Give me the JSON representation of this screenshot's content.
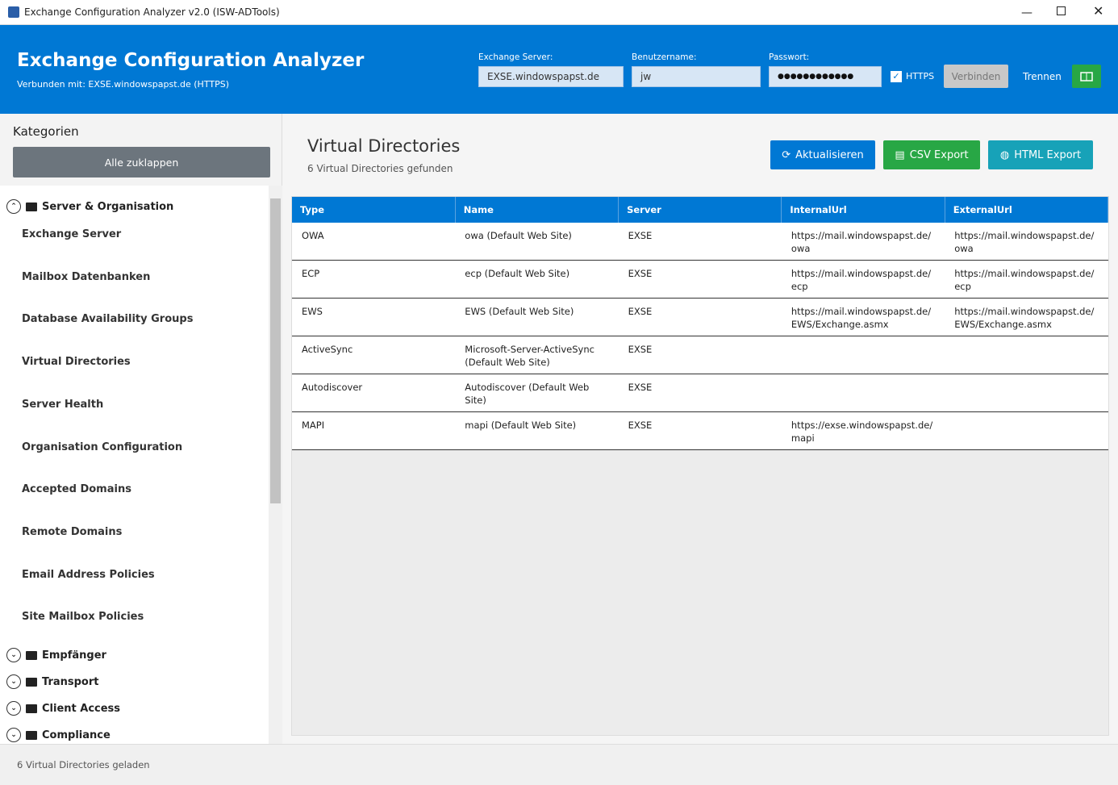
{
  "window": {
    "title": "Exchange Configuration Analyzer v2.0 (ISW-ADTools)"
  },
  "header": {
    "title": "Exchange Configuration Analyzer",
    "subtitle": "Verbunden mit: EXSE.windowspapst.de (HTTPS)",
    "server_label": "Exchange Server:",
    "server_value": "EXSE.windowspapst.de",
    "user_label": "Benutzername:",
    "user_value": "jw",
    "password_label": "Passwort:",
    "password_value": "●●●●●●●●●●●●",
    "https_label": "HTTPS",
    "connect": "Verbinden",
    "disconnect": "Trennen"
  },
  "sidebar": {
    "title": "Kategorien",
    "collapse": "Alle zuklappen",
    "groups": [
      {
        "label": "Server & Organisation",
        "items": [
          "Exchange Server",
          "Mailbox Datenbanken",
          "Database Availability Groups",
          "Virtual Directories",
          "Server Health",
          "Organisation Configuration",
          "Accepted Domains",
          "Remote Domains",
          "Email Address Policies",
          "Site Mailbox Policies"
        ]
      },
      {
        "label": "Empfänger"
      },
      {
        "label": "Transport"
      },
      {
        "label": "Client Access"
      },
      {
        "label": "Compliance"
      }
    ]
  },
  "content": {
    "title": "Virtual Directories",
    "subtitle": "6 Virtual Directories gefunden",
    "refresh": "Aktualisieren",
    "csv": "CSV Export",
    "html": "HTML Export"
  },
  "table": {
    "columns": [
      "Type",
      "Name",
      "Server",
      "InternalUrl",
      "ExternalUrl"
    ],
    "rows": [
      [
        "OWA",
        "owa (Default Web Site)",
        "EXSE",
        "https://mail.windowspapst.de/owa",
        "https://mail.windowspapst.de/owa"
      ],
      [
        "ECP",
        "ecp (Default Web Site)",
        "EXSE",
        "https://mail.windowspapst.de/ecp",
        "https://mail.windowspapst.de/ecp"
      ],
      [
        "EWS",
        "EWS (Default Web Site)",
        "EXSE",
        "https://mail.windowspapst.de/EWS/Exchange.asmx",
        "https://mail.windowspapst.de/EWS/Exchange.asmx"
      ],
      [
        "ActiveSync",
        "Microsoft-Server-ActiveSync (Default Web Site)",
        "EXSE",
        "",
        ""
      ],
      [
        "Autodiscover",
        "Autodiscover (Default Web Site)",
        "EXSE",
        "",
        ""
      ],
      [
        "MAPI",
        "mapi (Default Web Site)",
        "EXSE",
        "https://exse.windowspapst.de/mapi",
        ""
      ]
    ]
  },
  "status": "6 Virtual Directories geladen"
}
